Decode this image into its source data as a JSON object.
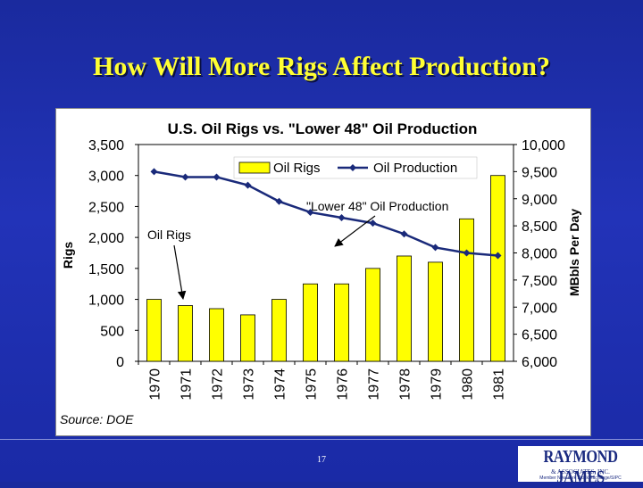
{
  "slide": {
    "title": "How Will More Rigs Affect Production?",
    "page_number": "17",
    "logo_text": "RAYMOND JAMES",
    "logo_sub": "& ASSOCIATES, INC.",
    "logo_tagline": "Member New York Stock Exchange/SIPC"
  },
  "colors": {
    "background": "#1f30b0",
    "title": "#ffff33",
    "bar": "#ffff00",
    "line": "#1a2a7a"
  },
  "chart_data": {
    "type": "bar",
    "title": "U.S. Oil Rigs vs. \"Lower 48\" Oil Production",
    "categories": [
      "1970",
      "1971",
      "1972",
      "1973",
      "1974",
      "1975",
      "1976",
      "1977",
      "1978",
      "1979",
      "1980",
      "1981"
    ],
    "series": [
      {
        "name": "Oil Rigs",
        "type": "bar",
        "axis": "left",
        "values": [
          1000,
          900,
          850,
          750,
          1000,
          1250,
          1250,
          1500,
          1700,
          1600,
          2300,
          3000
        ]
      },
      {
        "name": "Oil Production",
        "type": "line",
        "axis": "right",
        "values": [
          9500,
          9400,
          9400,
          9250,
          8950,
          8750,
          8650,
          8550,
          8350,
          8100,
          8000,
          7950
        ]
      }
    ],
    "ylabel_left": "Rigs",
    "ylabel_right": "MBbls Per Day",
    "ylim_left": [
      0,
      3500
    ],
    "ylim_right": [
      6000,
      10000
    ],
    "yticks_left": [
      "0",
      "500",
      "1,000",
      "1,500",
      "2,000",
      "2,500",
      "3,000",
      "3,500"
    ],
    "yticks_right": [
      "6,000",
      "6,500",
      "7,000",
      "7,500",
      "8,000",
      "8,500",
      "9,000",
      "9,500",
      "10,000"
    ],
    "legend": [
      "Oil Rigs",
      "Oil Production"
    ],
    "legend_position": "top-center",
    "annotations": [
      "\"Lower 48\" Oil Production",
      "Oil Rigs"
    ],
    "source": "Source: DOE"
  }
}
